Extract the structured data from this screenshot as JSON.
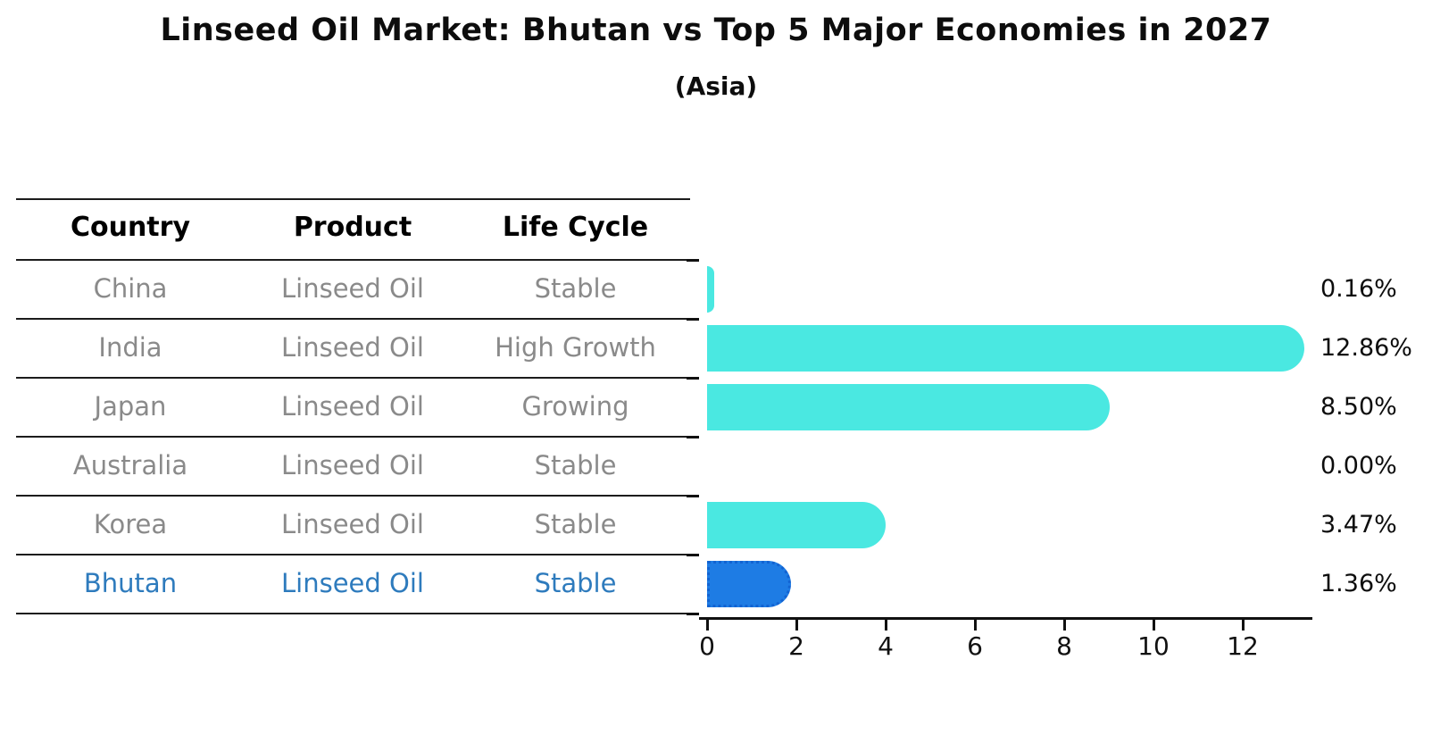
{
  "title": "Linseed Oil Market: Bhutan vs Top 5 Major Economies in 2027",
  "subtitle": "(Asia)",
  "table": {
    "headers": [
      "Country",
      "Product",
      "Life Cycle"
    ],
    "rows": [
      {
        "country": "China",
        "product": "Linseed Oil",
        "life_cycle": "Stable",
        "highlight": false
      },
      {
        "country": "India",
        "product": "Linseed Oil",
        "life_cycle": "High Growth",
        "highlight": false
      },
      {
        "country": "Japan",
        "product": "Linseed Oil",
        "life_cycle": "Growing",
        "highlight": false
      },
      {
        "country": "Australia",
        "product": "Linseed Oil",
        "life_cycle": "Stable",
        "highlight": false
      },
      {
        "country": "Korea",
        "product": "Linseed Oil",
        "life_cycle": "Stable",
        "highlight": false
      },
      {
        "country": "Bhutan",
        "product": "Linseed Oil",
        "life_cycle": "Stable",
        "highlight": true
      }
    ]
  },
  "chart_data": {
    "type": "bar",
    "orientation": "horizontal",
    "title": "Linseed Oil Market: Bhutan vs Top 5 Major Economies in 2027",
    "subtitle": "(Asia)",
    "categories": [
      "China",
      "India",
      "Japan",
      "Australia",
      "Korea",
      "Bhutan"
    ],
    "values": [
      0.16,
      12.86,
      8.5,
      0.0,
      3.47,
      1.36
    ],
    "value_labels": [
      "0.16%",
      "12.86%",
      "8.50%",
      "0.00%",
      "3.47%",
      "1.36%"
    ],
    "xlabel": "",
    "ylabel": "",
    "xlim": [
      0,
      13.56
    ],
    "xticks": [
      0,
      2,
      4,
      6,
      8,
      10,
      12
    ],
    "grid": false,
    "legend": false,
    "bar_color": "#4AE8E1",
    "highlight_index": 5,
    "highlight_color": "#1E7CE4",
    "highlight_border_color": "#1263D2",
    "highlight_text_color": "#2E7BBD",
    "row_text_color": "#8A8A8A",
    "axis_color": "#111111"
  }
}
